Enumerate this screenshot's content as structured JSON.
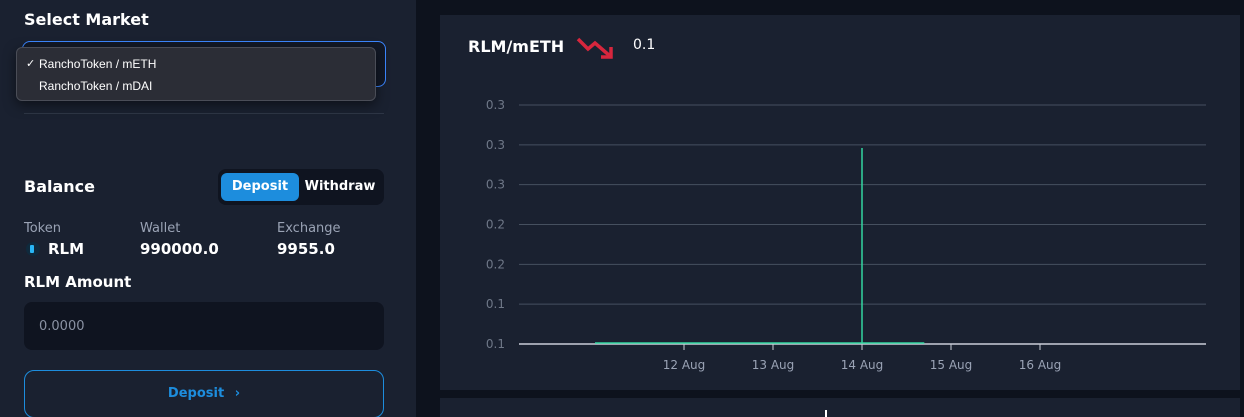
{
  "market": {
    "title": "Select Market",
    "options": [
      {
        "label": "RanchoToken / mETH",
        "selected": true,
        "check": "✓"
      },
      {
        "label": "RanchoToken / mDAI",
        "selected": false,
        "check": ""
      }
    ]
  },
  "balance": {
    "title": "Balance",
    "toggle": {
      "deposit_label": "Deposit",
      "withdraw_label": "Withdraw",
      "active": "Deposit"
    },
    "columns": {
      "token": "Token",
      "wallet": "Wallet",
      "exchange": "Exchange"
    },
    "token_symbol": "RLM",
    "wallet_value": "990000.0",
    "exchange_value": "9955.0"
  },
  "amount": {
    "label": "RLM Amount",
    "placeholder": "0.0000",
    "value": ""
  },
  "deposit_button": {
    "label": "Deposit",
    "chevron": "›"
  },
  "chart_panel": {
    "pair": "RLM/mETH",
    "trend": "down",
    "price": "0.1",
    "colors": {
      "trend": "#d7263d",
      "line": "#33d69f",
      "accent": "#1d8ddd"
    }
  },
  "chart_data": {
    "type": "line",
    "title": "",
    "xlabel": "",
    "ylabel": "",
    "y_tick_labels": [
      "0.3",
      "0.3",
      "0.3",
      "0.2",
      "0.2",
      "0.1",
      "0.1"
    ],
    "x_tick_labels": [
      "12 Aug",
      "13 Aug",
      "14 Aug",
      "15 Aug",
      "16 Aug"
    ],
    "grid": true,
    "series": [
      {
        "values_description_free": true,
        "points": [
          {
            "x": "11 Aug",
            "y": 0.1
          },
          {
            "x": "13 Aug",
            "y": 0.1
          },
          {
            "x": "14 Aug",
            "y": 0.1
          },
          {
            "x": "14 Aug",
            "y": 0.3
          },
          {
            "x": "14 Aug",
            "y": 0.1
          },
          {
            "x": "14.7 Aug",
            "y": 0.1
          }
        ]
      }
    ]
  }
}
